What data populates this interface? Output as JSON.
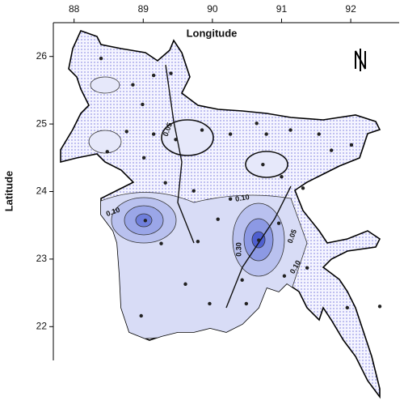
{
  "chart_data": {
    "type": "scatter",
    "xlabel": "Longitude",
    "ylabel": "Latitude",
    "north_label": "N",
    "xlim": [
      87.7,
      92.7
    ],
    "ylim": [
      21.5,
      26.5
    ],
    "xticks": [
      88,
      89,
      90,
      91,
      92
    ],
    "yticks": [
      22,
      23,
      24,
      25,
      26
    ],
    "color": "#222222",
    "contour_labels": [
      "0.05",
      "0.10",
      "0.10",
      "0.30",
      "0.10",
      "0.05"
    ],
    "x": [
      88.39,
      89.15,
      89.4,
      88.85,
      88.99,
      88.48,
      88.76,
      89.15,
      89.47,
      89.01,
      89.85,
      90.26,
      90.64,
      90.78,
      91.13,
      91.54,
      91.72,
      92.01,
      90.73,
      91.0,
      91.31,
      89.32,
      89.73,
      90.26,
      89.03,
      89.26,
      89.79,
      90.08,
      90.67,
      90.96,
      89.61,
      89.96,
      90.43,
      91.04,
      91.37,
      91.95,
      92.42,
      88.97,
      90.49
    ],
    "values": [
      25.97,
      25.72,
      25.75,
      25.58,
      25.29,
      24.59,
      24.89,
      24.85,
      24.77,
      24.5,
      24.91,
      24.85,
      25.01,
      24.85,
      24.91,
      24.85,
      24.61,
      24.69,
      24.4,
      24.22,
      24.05,
      24.13,
      24.01,
      23.89,
      23.57,
      23.23,
      23.26,
      23.59,
      23.28,
      23.53,
      22.63,
      22.34,
      22.69,
      22.75,
      22.87,
      22.28,
      22.3,
      22.16,
      22.34
    ]
  }
}
